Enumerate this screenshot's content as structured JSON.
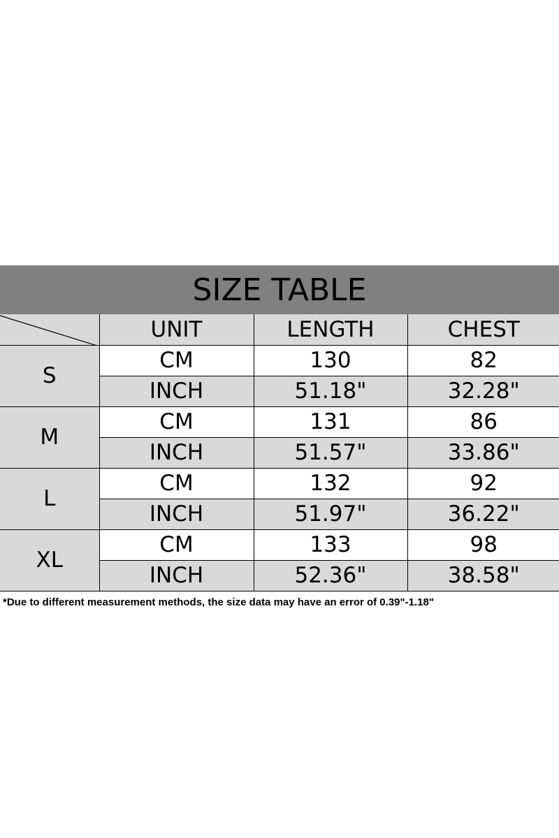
{
  "title": "SIZE TABLE",
  "headers": [
    "UNIT",
    "LENGTH",
    "CHEST"
  ],
  "sizes": [
    {
      "size": "S",
      "rows": [
        [
          "CM",
          "130",
          "82"
        ],
        [
          "INCH",
          "51.18\"",
          "32.28\""
        ]
      ]
    },
    {
      "size": "M",
      "rows": [
        [
          "CM",
          "131",
          "86"
        ],
        [
          "INCH",
          "51.57\"",
          "33.86\""
        ]
      ]
    },
    {
      "size": "L",
      "rows": [
        [
          "CM",
          "132",
          "92"
        ],
        [
          "INCH",
          "51.97\"",
          "36.22\""
        ]
      ]
    },
    {
      "size": "XL",
      "rows": [
        [
          "CM",
          "133",
          "98"
        ],
        [
          "INCH",
          "52.36\"",
          "38.58\""
        ]
      ]
    }
  ],
  "note": "*Due to different measurement methods, the size data may have an error of 0.39\"-1.18\"",
  "colors": {
    "title_band": "#808080",
    "shaded_cell": "#d9d9d9"
  }
}
